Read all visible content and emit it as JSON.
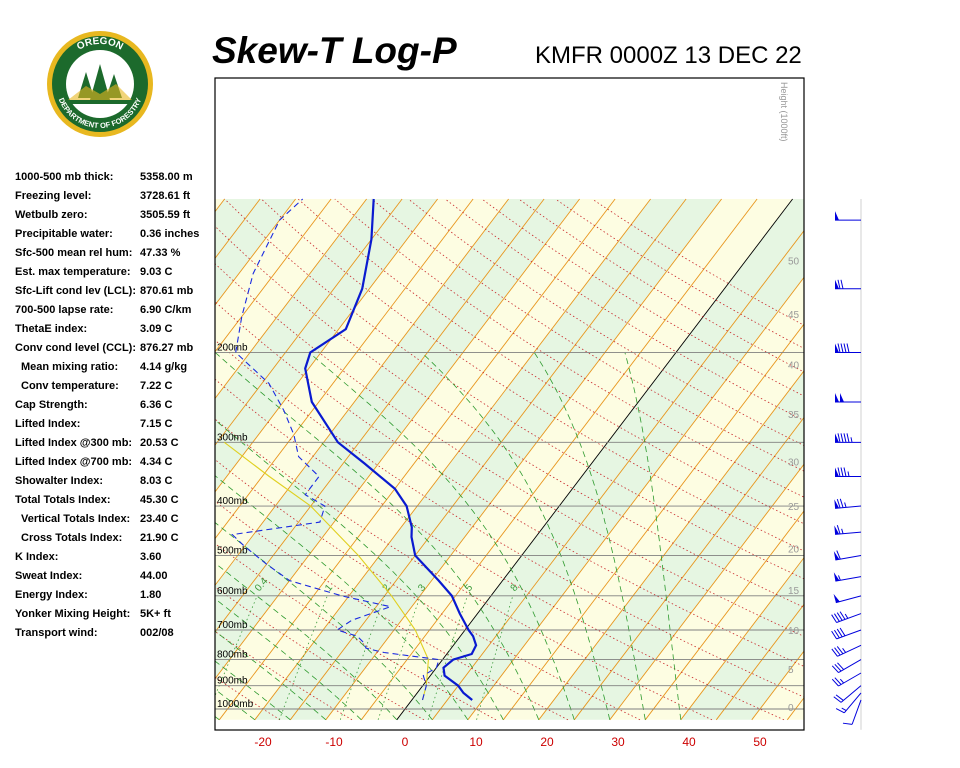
{
  "logo": {
    "top_text": "OREGON",
    "bottom_text": "DEPARTMENT OF FORESTRY"
  },
  "header": {
    "title": "Skew-T Log-P",
    "subtitle": "KMFR 0000Z 13 DEC 22"
  },
  "stats": [
    {
      "label": "1000-500 mb thick:",
      "value": "5358.00 m",
      "indent": false
    },
    {
      "label": "Freezing level:",
      "value": "3728.61 ft",
      "indent": false
    },
    {
      "label": "Wetbulb zero:",
      "value": "3505.59 ft",
      "indent": false
    },
    {
      "label": "Precipitable water:",
      "value": "0.36 inches",
      "indent": false
    },
    {
      "label": "Sfc-500 mean rel hum:",
      "value": "47.33 %",
      "indent": false
    },
    {
      "label": "Est. max temperature:",
      "value": "9.03 C",
      "indent": false
    },
    {
      "label": "Sfc-Lift cond lev (LCL):",
      "value": "870.61 mb",
      "indent": false
    },
    {
      "label": "700-500 lapse rate:",
      "value": "6.90 C/km",
      "indent": false
    },
    {
      "label": "ThetaE index:",
      "value": "3.09 C",
      "indent": false
    },
    {
      "label": "Conv cond level (CCL):",
      "value": "876.27 mb",
      "indent": false
    },
    {
      "label": "Mean mixing ratio:",
      "value": "4.14 g/kg",
      "indent": true
    },
    {
      "label": "Conv temperature:",
      "value": "7.22 C",
      "indent": true
    },
    {
      "label": "Cap Strength:",
      "value": "6.36 C",
      "indent": false
    },
    {
      "label": "Lifted Index:",
      "value": "7.15 C",
      "indent": false
    },
    {
      "label": "Lifted Index @300 mb:",
      "value": "20.53 C",
      "indent": false
    },
    {
      "label": "Lifted Index @700 mb:",
      "value": "4.34 C",
      "indent": false
    },
    {
      "label": "Showalter Index:",
      "value": "8.03 C",
      "indent": false
    },
    {
      "label": "Total Totals Index:",
      "value": "45.30 C",
      "indent": false
    },
    {
      "label": "Vertical Totals Index:",
      "value": "23.40 C",
      "indent": true
    },
    {
      "label": "Cross Totals Index:",
      "value": "21.90 C",
      "indent": true
    },
    {
      "label": "K Index:",
      "value": "3.60",
      "indent": false
    },
    {
      "label": "Sweat Index:",
      "value": "44.00",
      "indent": false
    },
    {
      "label": "Energy Index:",
      "value": "1.80",
      "indent": false
    },
    {
      "label": "Yonker Mixing Height:",
      "value": "5K+ ft",
      "indent": false
    },
    {
      "label": "Transport wind:",
      "value": "002/08",
      "indent": false
    }
  ],
  "colors": {
    "temperature": "#0a1ad0",
    "dewpoint": "#1a2ae0",
    "parcel": "#e0d020",
    "isotherm": "#e8961e",
    "dry_adiabat": "#c8282a",
    "moist_adiabat": "#2e9a2e",
    "mixing_ratio": "#3a9a3a",
    "isobar": "#808080",
    "band_yellow": "#fdfde2",
    "band_green": "#e6f6e2",
    "x_tick_label": "#cc0000",
    "wind_barb": "#0000dd"
  },
  "chart_data": {
    "type": "skew-t",
    "xlabel": "",
    "ylabel": "",
    "x_range": [
      -25,
      57
    ],
    "p_range": [
      1050,
      100
    ],
    "x_ticks": [
      "-20",
      "-10",
      "0",
      "10",
      "20",
      "30",
      "40",
      "50"
    ],
    "isobars": [
      {
        "p": 200,
        "label": "200mb"
      },
      {
        "p": 300,
        "label": "300mb"
      },
      {
        "p": 400,
        "label": "400mb"
      },
      {
        "p": 500,
        "label": "500mb"
      },
      {
        "p": 600,
        "label": "600mb"
      },
      {
        "p": 700,
        "label": "700mb"
      },
      {
        "p": 800,
        "label": "800mb"
      },
      {
        "p": 900,
        "label": "900mb"
      },
      {
        "p": 1000,
        "label": "1000mb"
      }
    ],
    "height_axis_title": "Height (1000ft)",
    "height_labels": [
      {
        "p": 990,
        "label": "0"
      },
      {
        "p": 835,
        "label": "5"
      },
      {
        "p": 700,
        "label": "10"
      },
      {
        "p": 585,
        "label": "15"
      },
      {
        "p": 485,
        "label": "20"
      },
      {
        "p": 400,
        "label": "25"
      },
      {
        "p": 327,
        "label": "30"
      },
      {
        "p": 264,
        "label": "35"
      },
      {
        "p": 211,
        "label": "40"
      },
      {
        "p": 168,
        "label": "45"
      },
      {
        "p": 132,
        "label": "50"
      }
    ],
    "mixing_ratio_labels": [
      "0.4",
      "1",
      "2",
      "3",
      "5",
      "8"
    ],
    "series": [
      {
        "points": [
          {
            "p": 960,
            "t": 8.5
          },
          {
            "p": 930,
            "t": 6.5
          },
          {
            "p": 900,
            "t": 5.0
          },
          {
            "p": 860,
            "t": 2.0
          },
          {
            "p": 830,
            "t": 1.0
          },
          {
            "p": 800,
            "t": 1.5
          },
          {
            "p": 780,
            "t": 3.5
          },
          {
            "p": 750,
            "t": 3.2
          },
          {
            "p": 720,
            "t": 1.8
          },
          {
            "p": 700,
            "t": 0.5
          },
          {
            "p": 650,
            "t": -2.5
          },
          {
            "p": 600,
            "t": -5.5
          },
          {
            "p": 560,
            "t": -9.0
          },
          {
            "p": 500,
            "t": -15.0
          },
          {
            "p": 460,
            "t": -17.5
          },
          {
            "p": 440,
            "t": -18.5
          },
          {
            "p": 400,
            "t": -21.5
          },
          {
            "p": 370,
            "t": -25.0
          },
          {
            "p": 330,
            "t": -32.0
          },
          {
            "p": 300,
            "t": -38.0
          },
          {
            "p": 250,
            "t": -46.0
          },
          {
            "p": 215,
            "t": -50.5
          },
          {
            "p": 200,
            "t": -51.5
          },
          {
            "p": 180,
            "t": -49.0
          },
          {
            "p": 150,
            "t": -51.0
          },
          {
            "p": 120,
            "t": -55.0
          },
          {
            "p": 100,
            "t": -59.0
          }
        ]
      },
      {
        "points": [
          {
            "p": 960,
            "t": 1.5
          },
          {
            "p": 900,
            "t": 0.5
          },
          {
            "p": 860,
            "t": -1.0
          },
          {
            "p": 830,
            "t": 0.0
          },
          {
            "p": 800,
            "t": -0.5
          },
          {
            "p": 775,
            "t": -9.0
          },
          {
            "p": 760,
            "t": -12.0
          },
          {
            "p": 740,
            "t": -13.0
          },
          {
            "p": 720,
            "t": -14.5
          },
          {
            "p": 700,
            "t": -18.0
          },
          {
            "p": 670,
            "t": -17.0
          },
          {
            "p": 630,
            "t": -13.0
          },
          {
            "p": 600,
            "t": -21.0
          },
          {
            "p": 560,
            "t": -30.0
          },
          {
            "p": 520,
            "t": -35.0
          },
          {
            "p": 480,
            "t": -40.0
          },
          {
            "p": 455,
            "t": -43.0
          },
          {
            "p": 430,
            "t": -32.0
          },
          {
            "p": 400,
            "t": -33.0
          },
          {
            "p": 380,
            "t": -37.0
          },
          {
            "p": 350,
            "t": -37.0
          },
          {
            "p": 320,
            "t": -42.0
          },
          {
            "p": 290,
            "t": -45.0
          },
          {
            "p": 260,
            "t": -49.0
          },
          {
            "p": 230,
            "t": -54.0
          },
          {
            "p": 200,
            "t": -62.0
          },
          {
            "p": 170,
            "t": -65.0
          },
          {
            "p": 140,
            "t": -68.0
          },
          {
            "p": 110,
            "t": -70.0
          },
          {
            "p": 100,
            "t": -69.0
          }
        ]
      },
      {
        "points": [
          {
            "p": 960,
            "t": 1.5
          },
          {
            "p": 900,
            "t": 0.5
          },
          {
            "p": 800,
            "t": -2.0
          },
          {
            "p": 700,
            "t": -7.0
          },
          {
            "p": 600,
            "t": -14.0
          },
          {
            "p": 500,
            "t": -23.0
          },
          {
            "p": 400,
            "t": -35.0
          },
          {
            "p": 350,
            "t": -44.0
          },
          {
            "p": 300,
            "t": -54.0
          }
        ]
      }
    ],
    "wind_barbs": [
      {
        "p": 960,
        "dir": 200,
        "spd": 10
      },
      {
        "p": 930,
        "dir": 220,
        "spd": 15
      },
      {
        "p": 900,
        "dir": 230,
        "spd": 20
      },
      {
        "p": 850,
        "dir": 240,
        "spd": 25
      },
      {
        "p": 800,
        "dir": 240,
        "spd": 30
      },
      {
        "p": 750,
        "dir": 245,
        "spd": 35
      },
      {
        "p": 700,
        "dir": 250,
        "spd": 40
      },
      {
        "p": 650,
        "dir": 250,
        "spd": 45
      },
      {
        "p": 600,
        "dir": 255,
        "spd": 50
      },
      {
        "p": 550,
        "dir": 260,
        "spd": 55
      },
      {
        "p": 500,
        "dir": 260,
        "spd": 60
      },
      {
        "p": 450,
        "dir": 265,
        "spd": 65
      },
      {
        "p": 400,
        "dir": 265,
        "spd": 75
      },
      {
        "p": 350,
        "dir": 270,
        "spd": 85
      },
      {
        "p": 300,
        "dir": 270,
        "spd": 95
      },
      {
        "p": 250,
        "dir": 270,
        "spd": 100
      },
      {
        "p": 200,
        "dir": 270,
        "spd": 90
      },
      {
        "p": 150,
        "dir": 270,
        "spd": 70
      },
      {
        "p": 110,
        "dir": 270,
        "spd": 50
      }
    ]
  }
}
